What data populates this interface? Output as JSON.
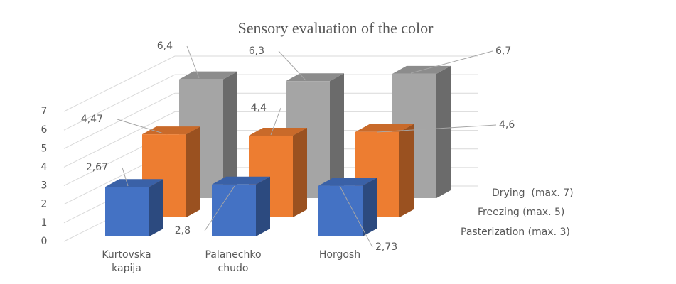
{
  "chart_data": {
    "type": "bar3d",
    "title": "Sensory evaluation of the color",
    "categories": [
      "Kurtovska kapija",
      "Palanechko chudo",
      "Horgosh"
    ],
    "series": [
      {
        "name": "Pasterization (max. 3)",
        "color": "#4472c4",
        "values": [
          2.67,
          2.8,
          2.73
        ],
        "value_labels": [
          "2,67",
          "2,8",
          "2,73"
        ]
      },
      {
        "name": "Freezing (max. 5)",
        "color": "#ed7d31",
        "values": [
          4.47,
          4.4,
          4.6
        ],
        "value_labels": [
          "4,47",
          "4,4",
          "4,6"
        ]
      },
      {
        "name": "Drying  (max. 7)",
        "color": "#a5a5a5",
        "values": [
          6.4,
          6.3,
          6.7
        ],
        "value_labels": [
          "6,4",
          "6,3",
          "6,7"
        ]
      }
    ],
    "ylim": [
      0,
      7
    ],
    "yticks": [
      0,
      1,
      2,
      3,
      4,
      5,
      6,
      7
    ],
    "grid": true
  }
}
